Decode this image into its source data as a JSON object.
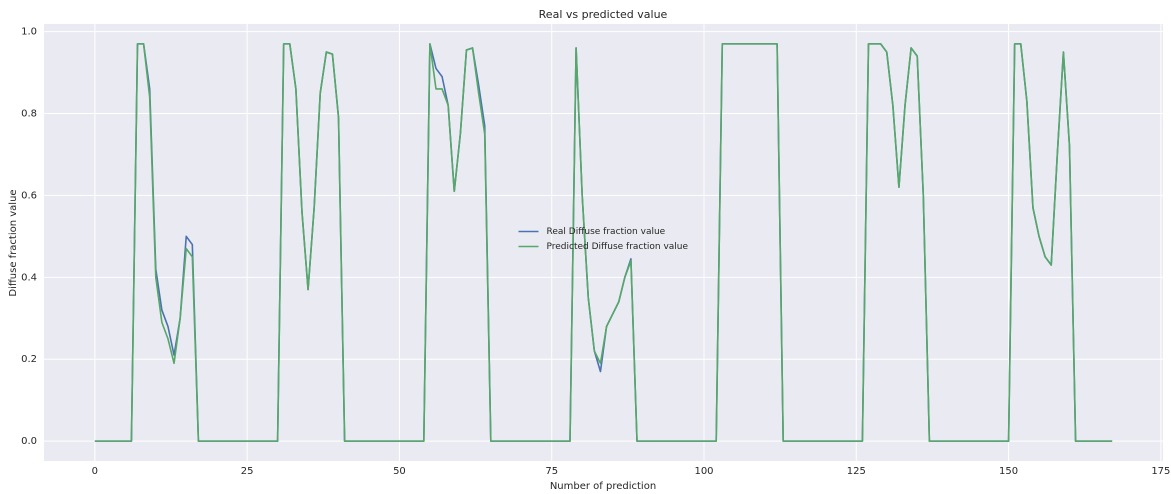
{
  "chart_data": {
    "type": "line",
    "title": "Real vs predicted value",
    "x_label": "Number of prediction",
    "y_label": "Diffuse fraction value",
    "x": [
      0,
      1,
      2,
      3,
      4,
      5,
      6,
      7,
      8,
      9,
      10,
      11,
      12,
      13,
      14,
      15,
      16,
      17,
      18,
      19,
      20,
      21,
      22,
      23,
      24,
      25,
      26,
      27,
      28,
      29,
      30,
      31,
      32,
      33,
      34,
      35,
      36,
      37,
      38,
      39,
      40,
      41,
      42,
      43,
      44,
      45,
      46,
      47,
      48,
      49,
      50,
      51,
      52,
      53,
      54,
      55,
      56,
      57,
      58,
      59,
      60,
      61,
      62,
      63,
      64,
      65,
      66,
      67,
      68,
      69,
      70,
      71,
      72,
      73,
      74,
      75,
      76,
      77,
      78,
      79,
      80,
      81,
      82,
      83,
      84,
      85,
      86,
      87,
      88,
      89,
      90,
      91,
      92,
      93,
      94,
      95,
      96,
      97,
      98,
      99,
      100,
      101,
      102,
      103,
      104,
      105,
      106,
      107,
      108,
      109,
      110,
      111,
      112,
      113,
      114,
      115,
      116,
      117,
      118,
      119,
      120,
      121,
      122,
      123,
      124,
      125,
      126,
      127,
      128,
      129,
      130,
      131,
      132,
      133,
      134,
      135,
      136,
      137,
      138,
      139,
      140,
      141,
      142,
      143,
      144,
      145,
      146,
      147,
      148,
      149,
      150,
      151,
      152,
      153,
      154,
      155,
      156,
      157,
      158,
      159,
      160,
      161,
      162,
      163,
      164,
      165,
      166,
      167
    ],
    "series": [
      {
        "name": "Real Diffuse fraction value",
        "color": "#4c72b0",
        "values": [
          0,
          0,
          0,
          0,
          0,
          0,
          0,
          0.97,
          0.97,
          0.86,
          0.42,
          0.32,
          0.28,
          0.21,
          0.3,
          0.5,
          0.48,
          0,
          0,
          0,
          0,
          0,
          0,
          0,
          0,
          0,
          0,
          0,
          0,
          0,
          0,
          0.97,
          0.97,
          0.86,
          0.56,
          0.37,
          0.57,
          0.85,
          0.95,
          0.945,
          0.79,
          0,
          0,
          0,
          0,
          0,
          0,
          0,
          0,
          0,
          0,
          0,
          0,
          0,
          0,
          0.97,
          0.91,
          0.89,
          0.82,
          0.61,
          0.75,
          0.955,
          0.96,
          0.87,
          0.77,
          0,
          0,
          0,
          0,
          0,
          0,
          0,
          0,
          0,
          0,
          0,
          0,
          0,
          0,
          0.96,
          0.6,
          0.35,
          0.22,
          0.17,
          0.28,
          0.31,
          0.34,
          0.4,
          0.445,
          0,
          0,
          0,
          0,
          0,
          0,
          0,
          0,
          0,
          0,
          0,
          0,
          0,
          0,
          0.97,
          0.97,
          0.97,
          0.97,
          0.97,
          0.97,
          0.97,
          0.97,
          0.97,
          0.97,
          0,
          0,
          0,
          0,
          0,
          0,
          0,
          0,
          0,
          0,
          0,
          0,
          0,
          0,
          0.97,
          0.97,
          0.97,
          0.95,
          0.82,
          0.62,
          0.82,
          0.96,
          0.94,
          0.6,
          0,
          0,
          0,
          0,
          0,
          0,
          0,
          0,
          0,
          0,
          0,
          0,
          0,
          0,
          0.97,
          0.97,
          0.83,
          0.57,
          0.5,
          0.45,
          0.43,
          0.7,
          0.95,
          0.72,
          0,
          0,
          0,
          0,
          0,
          0,
          0
        ]
      },
      {
        "name": "Predicted Diffuse fraction value",
        "color": "#55a868",
        "values": [
          0,
          0,
          0,
          0,
          0,
          0,
          0,
          0.97,
          0.97,
          0.84,
          0.4,
          0.29,
          0.25,
          0.19,
          0.3,
          0.47,
          0.45,
          0,
          0,
          0,
          0,
          0,
          0,
          0,
          0,
          0,
          0,
          0,
          0,
          0,
          0,
          0.97,
          0.97,
          0.86,
          0.56,
          0.37,
          0.57,
          0.85,
          0.95,
          0.945,
          0.79,
          0,
          0,
          0,
          0,
          0,
          0,
          0,
          0,
          0,
          0,
          0,
          0,
          0,
          0,
          0.97,
          0.86,
          0.86,
          0.82,
          0.61,
          0.75,
          0.955,
          0.96,
          0.85,
          0.75,
          0,
          0,
          0,
          0,
          0,
          0,
          0,
          0,
          0,
          0,
          0,
          0,
          0,
          0,
          0.96,
          0.6,
          0.35,
          0.22,
          0.19,
          0.28,
          0.31,
          0.34,
          0.4,
          0.44,
          0,
          0,
          0,
          0,
          0,
          0,
          0,
          0,
          0,
          0,
          0,
          0,
          0,
          0,
          0.97,
          0.97,
          0.97,
          0.97,
          0.97,
          0.97,
          0.97,
          0.97,
          0.97,
          0.97,
          0,
          0,
          0,
          0,
          0,
          0,
          0,
          0,
          0,
          0,
          0,
          0,
          0,
          0,
          0.97,
          0.97,
          0.97,
          0.95,
          0.82,
          0.62,
          0.82,
          0.96,
          0.94,
          0.6,
          0,
          0,
          0,
          0,
          0,
          0,
          0,
          0,
          0,
          0,
          0,
          0,
          0,
          0,
          0.97,
          0.97,
          0.83,
          0.57,
          0.5,
          0.45,
          0.43,
          0.7,
          0.95,
          0.72,
          0,
          0,
          0,
          0,
          0,
          0,
          0
        ]
      }
    ],
    "xlim": [
      -8.35,
      175.35
    ],
    "ylim": [
      -0.0485,
      1.0185
    ],
    "xticks": [
      0,
      25,
      50,
      75,
      100,
      125,
      150,
      175
    ],
    "yticks": [
      {
        "value": 0,
        "label": "0.0"
      },
      0.2,
      0.4,
      0.6,
      0.8,
      {
        "value": 1,
        "label": "1.0"
      }
    ],
    "grid": true,
    "legend": "center"
  }
}
